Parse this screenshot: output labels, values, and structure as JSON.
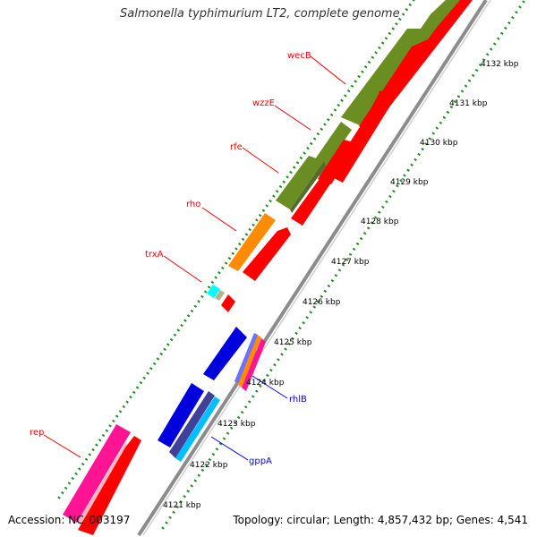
{
  "title": "Salmonella typhimurium LT2, complete genome",
  "footer": {
    "accession": "Accession: NC_003197",
    "topology": "Topology: circular; Length: 4,857,432 bp; Genes: 4,541"
  },
  "colors": {
    "ruler_dots": "#228b22",
    "backbone": "#888888",
    "forward_cds": "#6b8e23",
    "reverse_cds": "#ff0000",
    "rho": "#ff8c00",
    "trxA": "#00ffff",
    "rhlB": "#0000ff",
    "gppA": "#0000ff",
    "blue_cds": "#0000ee",
    "rep": "#ff1493",
    "label_red": "#ff0000",
    "label_blue": "#0000ff"
  },
  "ruler": {
    "ticks": [
      {
        "label": "4121 kbp"
      },
      {
        "label": "4122 kbp"
      },
      {
        "label": "4123 kbp"
      },
      {
        "label": "4124 kbp"
      },
      {
        "label": "4125 kbp"
      },
      {
        "label": "4126 kbp"
      },
      {
        "label": "4127 kbp"
      },
      {
        "label": "4128 kbp"
      },
      {
        "label": "4129 kbp"
      },
      {
        "label": "4130 kbp"
      },
      {
        "label": "4131 kbp"
      },
      {
        "label": "4132 kbp"
      }
    ]
  },
  "gene_labels": [
    {
      "name": "wecB",
      "color": "#ff0000"
    },
    {
      "name": "wzzE",
      "color": "#ff0000"
    },
    {
      "name": "rfe",
      "color": "#ff0000"
    },
    {
      "name": "rho",
      "color": "#ff0000"
    },
    {
      "name": "trxA",
      "color": "#ff0000"
    },
    {
      "name": "rep",
      "color": "#ff0000"
    },
    {
      "name": "rhlB",
      "color": "#0000ff"
    },
    {
      "name": "gppA",
      "color": "#0000ff"
    }
  ]
}
